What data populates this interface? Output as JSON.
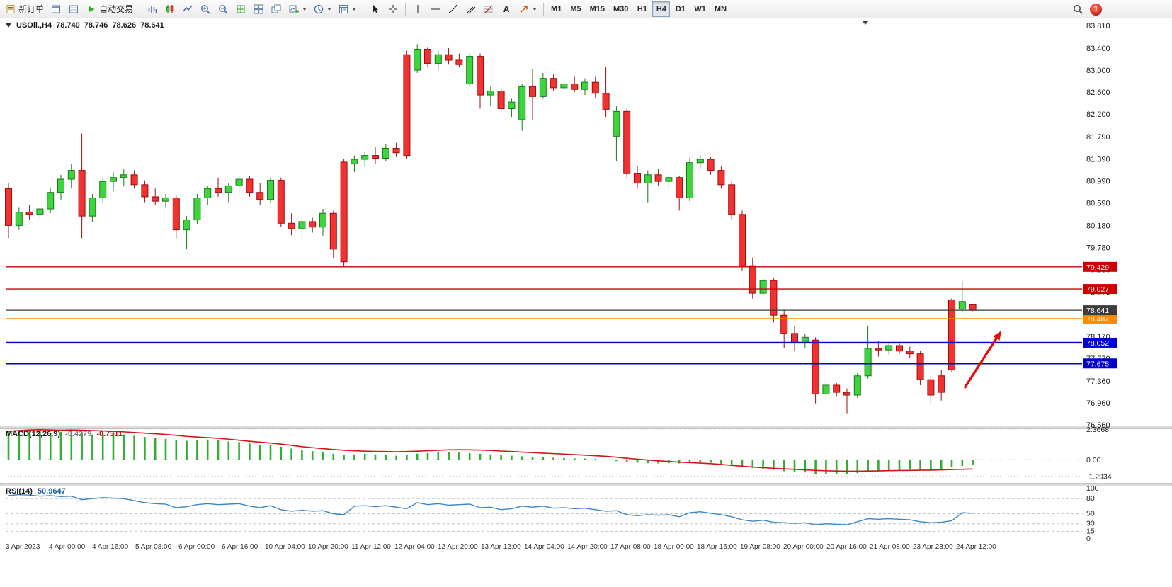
{
  "toolbar": {
    "new_order_label": "新订单",
    "auto_trading_label": "自动交易",
    "text_tool_glyph": "A",
    "timeframes": [
      "M1",
      "M5",
      "M15",
      "M30",
      "H1",
      "H4",
      "D1",
      "W1",
      "MN"
    ],
    "active_timeframe": "H4",
    "notification_count": "1"
  },
  "chart_header": {
    "symbol_period": "USOil.,H4",
    "open": "78.740",
    "high": "78.746",
    "low": "78.626",
    "close": "78.641"
  },
  "chart_data": {
    "type": "candlestick",
    "symbol": "USOil",
    "timeframe": "H4",
    "price_range": [
      76.56,
      83.81
    ],
    "price_axis_labels": [
      "83.810",
      "83.400",
      "83.000",
      "82.600",
      "82.200",
      "81.790",
      "81.390",
      "80.990",
      "80.590",
      "80.180",
      "79.780",
      "79.380",
      "78.970",
      "78.570",
      "78.170",
      "77.770",
      "77.360",
      "76.960",
      "76.560"
    ],
    "time_labels": [
      "3 Apr 2023",
      "4 Apr 00:00",
      "4 Apr 16:00",
      "5 Apr 08:00",
      "6 Apr 00:00",
      "6 Apr 16:00",
      "10 Apr 04:00",
      "10 Apr 20:00",
      "11 Apr 12:00",
      "12 Apr 04:00",
      "12 Apr 20:00",
      "13 Apr 12:00",
      "14 Apr 04:00",
      "14 Apr 20:00",
      "17 Apr 08:00",
      "18 Apr 00:00",
      "18 Apr 16:00",
      "19 Apr 08:00",
      "20 Apr 00:00",
      "20 Apr 16:00",
      "21 Apr 08:00",
      "23 Apr 23:00",
      "24 Apr 12:00"
    ],
    "ohlc": [
      [
        80.85,
        80.95,
        79.95,
        80.18
      ],
      [
        80.18,
        80.5,
        80.1,
        80.42
      ],
      [
        80.42,
        80.55,
        80.28,
        80.38
      ],
      [
        80.38,
        80.52,
        80.3,
        80.48
      ],
      [
        80.48,
        80.85,
        80.4,
        80.78
      ],
      [
        80.78,
        81.1,
        80.65,
        81.02
      ],
      [
        81.02,
        81.3,
        80.85,
        81.18
      ],
      [
        81.18,
        81.85,
        79.95,
        80.35
      ],
      [
        80.35,
        80.75,
        80.25,
        80.68
      ],
      [
        80.68,
        81.05,
        80.6,
        80.98
      ],
      [
        80.98,
        81.15,
        80.8,
        81.05
      ],
      [
        81.05,
        81.2,
        80.9,
        81.1
      ],
      [
        81.1,
        81.18,
        80.85,
        80.92
      ],
      [
        80.92,
        81.0,
        80.6,
        80.7
      ],
      [
        80.7,
        80.85,
        80.55,
        80.62
      ],
      [
        80.62,
        80.75,
        80.5,
        80.68
      ],
      [
        80.68,
        80.72,
        79.95,
        80.1
      ],
      [
        80.1,
        80.35,
        79.75,
        80.28
      ],
      [
        80.28,
        80.75,
        80.2,
        80.68
      ],
      [
        80.68,
        80.9,
        80.55,
        80.85
      ],
      [
        80.85,
        81.05,
        80.7,
        80.78
      ],
      [
        80.78,
        80.95,
        80.6,
        80.9
      ],
      [
        80.9,
        81.1,
        80.75,
        81.02
      ],
      [
        81.02,
        81.08,
        80.7,
        80.78
      ],
      [
        80.78,
        80.95,
        80.55,
        80.65
      ],
      [
        80.65,
        81.05,
        80.6,
        81.0
      ],
      [
        81.0,
        81.05,
        80.15,
        80.22
      ],
      [
        80.22,
        80.4,
        80.0,
        80.12
      ],
      [
        80.12,
        80.3,
        79.95,
        80.25
      ],
      [
        80.25,
        80.32,
        80.05,
        80.15
      ],
      [
        80.15,
        80.48,
        79.98,
        80.4
      ],
      [
        80.4,
        80.45,
        79.58,
        79.75
      ],
      [
        81.33,
        81.38,
        79.43,
        79.52
      ],
      [
        81.3,
        81.45,
        81.15,
        81.38
      ],
      [
        81.38,
        81.52,
        81.25,
        81.45
      ],
      [
        81.45,
        81.6,
        81.3,
        81.4
      ],
      [
        81.4,
        81.65,
        81.35,
        81.58
      ],
      [
        81.58,
        81.68,
        81.42,
        81.5
      ],
      [
        83.28,
        83.35,
        81.38,
        81.45
      ],
      [
        83.0,
        83.47,
        82.95,
        83.38
      ],
      [
        83.38,
        83.42,
        83.05,
        83.12
      ],
      [
        83.12,
        83.35,
        83.0,
        83.28
      ],
      [
        83.28,
        83.4,
        83.1,
        83.18
      ],
      [
        83.18,
        83.3,
        83.05,
        83.1
      ],
      [
        82.75,
        83.3,
        82.7,
        83.25
      ],
      [
        83.25,
        83.3,
        82.3,
        82.55
      ],
      [
        82.55,
        82.7,
        82.35,
        82.62
      ],
      [
        82.62,
        82.68,
        82.22,
        82.3
      ],
      [
        82.3,
        82.48,
        82.15,
        82.42
      ],
      [
        82.1,
        82.75,
        81.9,
        82.7
      ],
      [
        82.7,
        83.02,
        82.1,
        82.52
      ],
      [
        82.52,
        82.95,
        82.48,
        82.85
      ],
      [
        82.85,
        82.92,
        82.62,
        82.68
      ],
      [
        82.68,
        82.8,
        82.58,
        82.75
      ],
      [
        82.75,
        82.88,
        82.6,
        82.65
      ],
      [
        82.65,
        82.85,
        82.55,
        82.78
      ],
      [
        82.78,
        82.88,
        82.5,
        82.58
      ],
      [
        82.58,
        83.05,
        82.15,
        82.28
      ],
      [
        81.8,
        82.35,
        81.35,
        82.25
      ],
      [
        82.25,
        82.3,
        81.05,
        81.12
      ],
      [
        81.12,
        81.25,
        80.85,
        80.95
      ],
      [
        80.95,
        81.18,
        80.6,
        81.1
      ],
      [
        81.1,
        81.2,
        80.9,
        80.98
      ],
      [
        80.98,
        81.1,
        80.82,
        81.05
      ],
      [
        81.05,
        81.08,
        80.45,
        80.68
      ],
      [
        80.68,
        81.4,
        80.62,
        81.32
      ],
      [
        81.32,
        81.45,
        81.2,
        81.38
      ],
      [
        81.38,
        81.42,
        81.1,
        81.18
      ],
      [
        81.18,
        81.25,
        80.85,
        80.92
      ],
      [
        80.92,
        80.98,
        80.28,
        80.38
      ],
      [
        80.38,
        80.45,
        79.35,
        79.45
      ],
      [
        79.45,
        79.6,
        78.85,
        78.95
      ],
      [
        78.95,
        79.25,
        78.88,
        79.18
      ],
      [
        79.18,
        79.22,
        78.42,
        78.55
      ],
      [
        78.55,
        78.65,
        77.95,
        78.22
      ],
      [
        78.22,
        78.35,
        77.9,
        78.05
      ],
      [
        78.05,
        78.22,
        77.95,
        78.15
      ],
      [
        78.1,
        78.15,
        76.95,
        77.12
      ],
      [
        77.12,
        77.35,
        77.0,
        77.28
      ],
      [
        77.28,
        77.32,
        77.08,
        77.15
      ],
      [
        77.15,
        77.22,
        76.77,
        77.1
      ],
      [
        77.1,
        77.5,
        77.05,
        77.45
      ],
      [
        77.45,
        78.35,
        77.4,
        77.95
      ],
      [
        77.95,
        78.08,
        77.8,
        77.92
      ],
      [
        77.92,
        78.05,
        77.82,
        78.0
      ],
      [
        78.0,
        78.04,
        77.85,
        77.9
      ],
      [
        77.9,
        77.98,
        77.78,
        77.85
      ],
      [
        77.85,
        77.9,
        77.28,
        77.38
      ],
      [
        77.38,
        77.45,
        76.9,
        77.1
      ],
      [
        77.45,
        77.55,
        77.0,
        77.15
      ],
      [
        78.83,
        78.86,
        77.52,
        77.56
      ],
      [
        78.66,
        79.17,
        78.6,
        78.8
      ],
      [
        78.74,
        78.746,
        78.626,
        78.641
      ]
    ],
    "candle_colors": {
      "up_fill": "#3ed43e",
      "up_stroke": "#157a15",
      "down_fill": "#f23131",
      "down_stroke": "#9c0f0f"
    },
    "horizontal_lines": [
      {
        "price": 79.429,
        "label": "79.429",
        "color": "#cc0000",
        "width": 1.4
      },
      {
        "price": 79.027,
        "label": "79.027",
        "color": "#cc0000",
        "width": 1.4
      },
      {
        "price": 78.487,
        "label": "78.487",
        "color": "#ff8c00",
        "width": 1.8
      },
      {
        "price": 78.052,
        "label": "78.052",
        "color": "#0000cc",
        "width": 2.4
      },
      {
        "price": 77.675,
        "label": "77.675",
        "color": "#0000cc",
        "width": 2.4
      }
    ],
    "current_price": {
      "price": 78.641,
      "label": "78.641",
      "color": "#3c3c3c"
    },
    "indicators": {
      "macd": {
        "label": "MACD(12,26,9)",
        "value": "-0.4279",
        "signal_value": "-0.7311",
        "axis_labels": [
          "2.3668",
          "0.00",
          "-1.2934"
        ],
        "axis_values": [
          2.3668,
          0,
          -1.2934
        ],
        "histogram_color": "#2fae2f",
        "signal_color": "#d21515",
        "histogram": [
          2.2,
          2.25,
          2.3,
          2.2,
          2.1,
          2.15,
          2.2,
          2.1,
          1.95,
          2.0,
          2.05,
          1.95,
          1.85,
          1.75,
          1.65,
          1.6,
          1.5,
          1.45,
          1.5,
          1.55,
          1.5,
          1.4,
          1.35,
          1.25,
          1.15,
          1.1,
          1.0,
          0.85,
          0.75,
          0.65,
          0.55,
          0.45,
          0.35,
          0.4,
          0.45,
          0.4,
          0.35,
          0.3,
          0.35,
          0.45,
          0.5,
          0.55,
          0.6,
          0.55,
          0.5,
          0.45,
          0.4,
          0.35,
          0.3,
          0.25,
          0.2,
          0.18,
          0.15,
          0.12,
          0.1,
          0.08,
          0.05,
          -0.05,
          -0.12,
          -0.2,
          -0.25,
          -0.28,
          -0.3,
          -0.28,
          -0.3,
          -0.25,
          -0.2,
          -0.25,
          -0.35,
          -0.45,
          -0.55,
          -0.65,
          -0.7,
          -0.8,
          -0.9,
          -0.95,
          -1.0,
          -1.1,
          -1.15,
          -1.15,
          -1.1,
          -1.05,
          -0.95,
          -0.9,
          -0.85,
          -0.8,
          -0.78,
          -0.8,
          -0.82,
          -0.78,
          -0.6,
          -0.5,
          -0.43
        ],
        "signal": [
          2.2,
          2.25,
          2.3,
          2.32,
          2.3,
          2.28,
          2.3,
          2.28,
          2.25,
          2.22,
          2.2,
          2.15,
          2.1,
          2.05,
          2.0,
          1.95,
          1.88,
          1.8,
          1.75,
          1.7,
          1.65,
          1.58,
          1.5,
          1.42,
          1.35,
          1.28,
          1.2,
          1.1,
          1.0,
          0.92,
          0.85,
          0.78,
          0.72,
          0.68,
          0.65,
          0.63,
          0.62,
          0.6,
          0.62,
          0.65,
          0.68,
          0.72,
          0.75,
          0.76,
          0.75,
          0.73,
          0.7,
          0.66,
          0.62,
          0.58,
          0.54,
          0.5,
          0.46,
          0.42,
          0.38,
          0.34,
          0.3,
          0.25,
          0.18,
          0.1,
          0.03,
          -0.04,
          -0.1,
          -0.15,
          -0.2,
          -0.24,
          -0.28,
          -0.32,
          -0.38,
          -0.45,
          -0.52,
          -0.58,
          -0.63,
          -0.68,
          -0.72,
          -0.76,
          -0.8,
          -0.84,
          -0.87,
          -0.89,
          -0.9,
          -0.9,
          -0.89,
          -0.88,
          -0.86,
          -0.85,
          -0.84,
          -0.83,
          -0.82,
          -0.8,
          -0.77,
          -0.75,
          -0.73
        ]
      },
      "rsi": {
        "label": "RSI(14)",
        "value": "50.9647",
        "axis_labels": [
          "100",
          "80",
          "50",
          "30",
          "15",
          "0"
        ],
        "axis_values": [
          100,
          80,
          50,
          30,
          15,
          0
        ],
        "levels": [
          80,
          50,
          30,
          15
        ],
        "line_color": "#3a86c8",
        "values": [
          86,
          88,
          87,
          85,
          86,
          84,
          85,
          78,
          80,
          82,
          81,
          80,
          76,
          72,
          70,
          69,
          62,
          64,
          68,
          70,
          68,
          69,
          70,
          65,
          62,
          66,
          58,
          55,
          57,
          55,
          56,
          50,
          48,
          65,
          66,
          64,
          66,
          63,
          60,
          72,
          68,
          70,
          67,
          68,
          69,
          62,
          63,
          58,
          60,
          65,
          63,
          65,
          61,
          62,
          60,
          61,
          58,
          55,
          56,
          48,
          46,
          48,
          47,
          48,
          44,
          52,
          54,
          51,
          48,
          44,
          38,
          35,
          37,
          33,
          32,
          31,
          32,
          28,
          30,
          29,
          28,
          34,
          40,
          39,
          40,
          39,
          38,
          34,
          32,
          33,
          36,
          52,
          51
        ]
      }
    },
    "annotation_arrow": {
      "from": [
        1362,
        548
      ],
      "to": [
        1414,
        467
      ],
      "color": "#e01010"
    }
  }
}
